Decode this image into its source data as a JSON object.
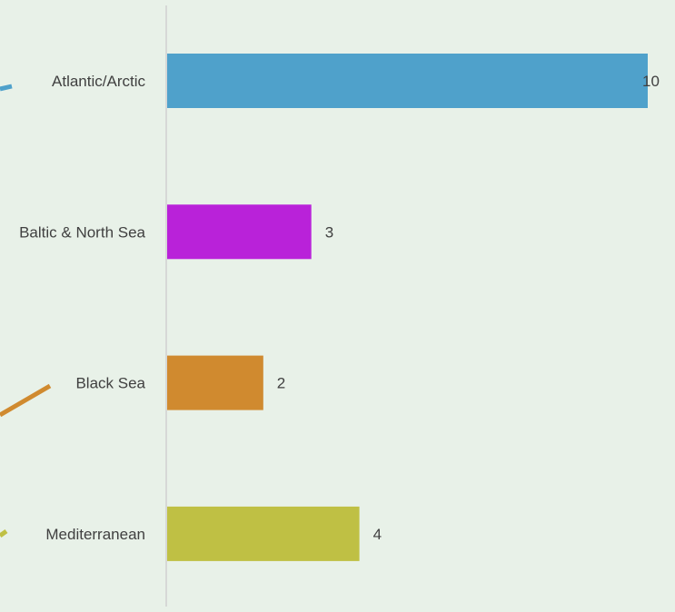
{
  "chart_data": {
    "type": "bar",
    "orientation": "horizontal",
    "categories": [
      "Atlantic/Arctic",
      "Baltic & North Sea",
      "Black Sea",
      "Mediterranean"
    ],
    "values": [
      10,
      3,
      2,
      4
    ],
    "colors": [
      "#4FA1CB",
      "#B922D9",
      "#D08A2F",
      "#BFC044"
    ],
    "background": "#E8F1E8",
    "axis_color": "#D0D0D0",
    "xlim": [
      0,
      10
    ],
    "grid": false,
    "legend": "none",
    "title": "",
    "xlabel": "",
    "ylabel": ""
  }
}
